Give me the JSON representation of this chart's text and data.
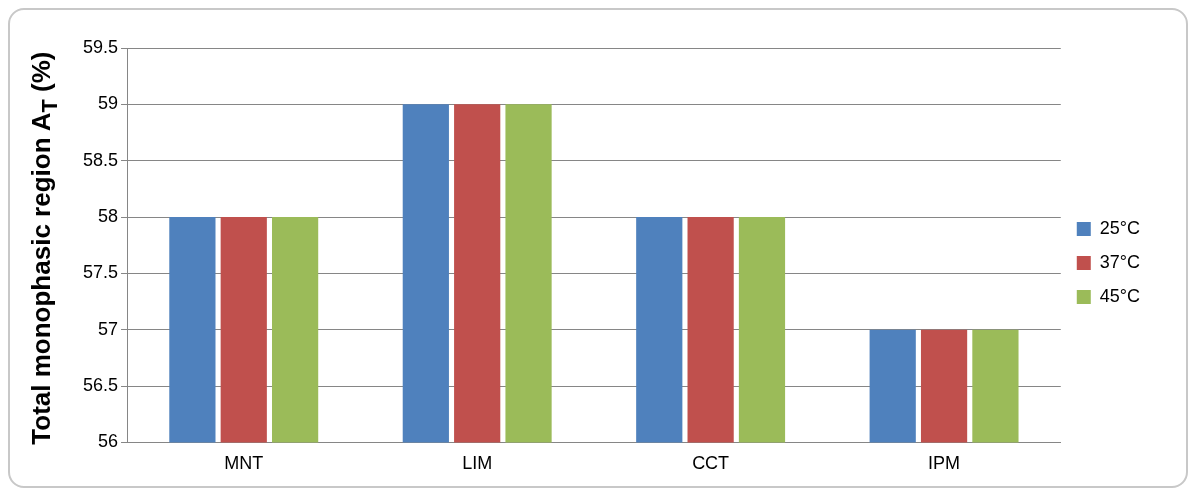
{
  "chart_data": {
    "type": "bar",
    "ylabel": "Total monophasic region A$_{T}$ (%)",
    "categories": [
      "MNT",
      "LIM",
      "CCT",
      "IPM"
    ],
    "series": [
      {
        "name": "25°C",
        "color": "#4f81bd",
        "values": [
          58,
          59,
          58,
          57
        ]
      },
      {
        "name": "37°C",
        "color": "#c0504d",
        "values": [
          58,
          59,
          58,
          57
        ]
      },
      {
        "name": "45°C",
        "color": "#9bbb59",
        "values": [
          58,
          59,
          58,
          57
        ]
      }
    ],
    "ylim": [
      56,
      59.5
    ],
    "yticks": [
      56,
      56.5,
      57,
      57.5,
      58,
      58.5,
      59,
      59.5
    ],
    "grid": "y",
    "legend": "right"
  }
}
